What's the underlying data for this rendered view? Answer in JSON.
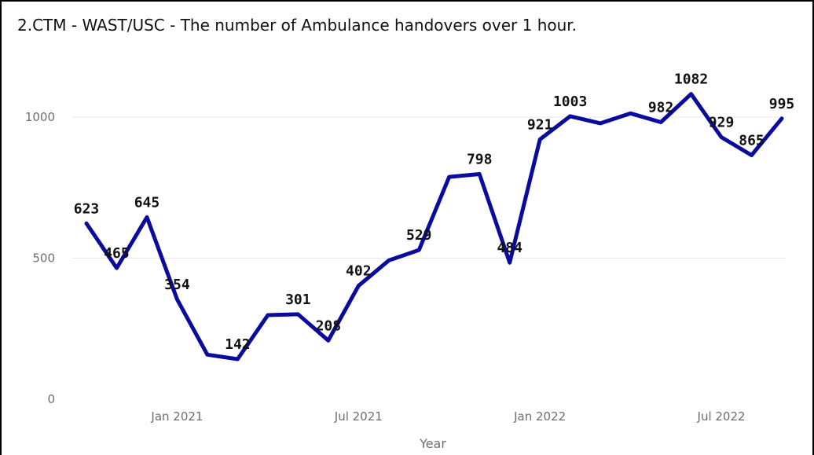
{
  "chart_data": {
    "type": "line",
    "title": "2.CTM - WAST/USC - The number of Ambulance handovers over 1 hour.",
    "xlabel": "Year",
    "ylabel": "",
    "ylim": [
      0,
      1200
    ],
    "yticks": [
      0,
      500,
      1000
    ],
    "ytick_labels": [
      "0",
      "500",
      "1000"
    ],
    "xticks": [
      "2021-01",
      "2021-07",
      "2022-01",
      "2022-07"
    ],
    "xtick_labels": [
      "Jan 2021",
      "Jul 2021",
      "Jan 2022",
      "Jul 2022"
    ],
    "grid": true,
    "legend": "none",
    "color": "#0a0a9c",
    "series": [
      {
        "x": [
          "2020-10",
          "2020-11",
          "2020-12",
          "2021-01",
          "2021-02",
          "2021-03",
          "2021-04",
          "2021-05",
          "2021-06",
          "2021-07",
          "2021-08",
          "2021-09",
          "2021-10",
          "2021-11",
          "2021-12",
          "2022-01",
          "2022-02",
          "2022-03",
          "2022-04",
          "2022-05",
          "2022-06",
          "2022-07",
          "2022-08",
          "2022-09"
        ],
        "values": [
          623,
          465,
          645,
          354,
          158,
          142,
          298,
          301,
          208,
          402,
          492,
          529,
          788,
          798,
          484,
          921,
          1003,
          978,
          1013,
          982,
          1082,
          929,
          865,
          995
        ],
        "labels": [
          "623",
          "465",
          "645",
          "354",
          "",
          "142",
          "",
          "301",
          "208",
          "402",
          "",
          "529",
          "",
          "798",
          "484",
          "921",
          "1003",
          "",
          "",
          "982",
          "1082",
          "929",
          "865",
          "995"
        ]
      }
    ]
  }
}
